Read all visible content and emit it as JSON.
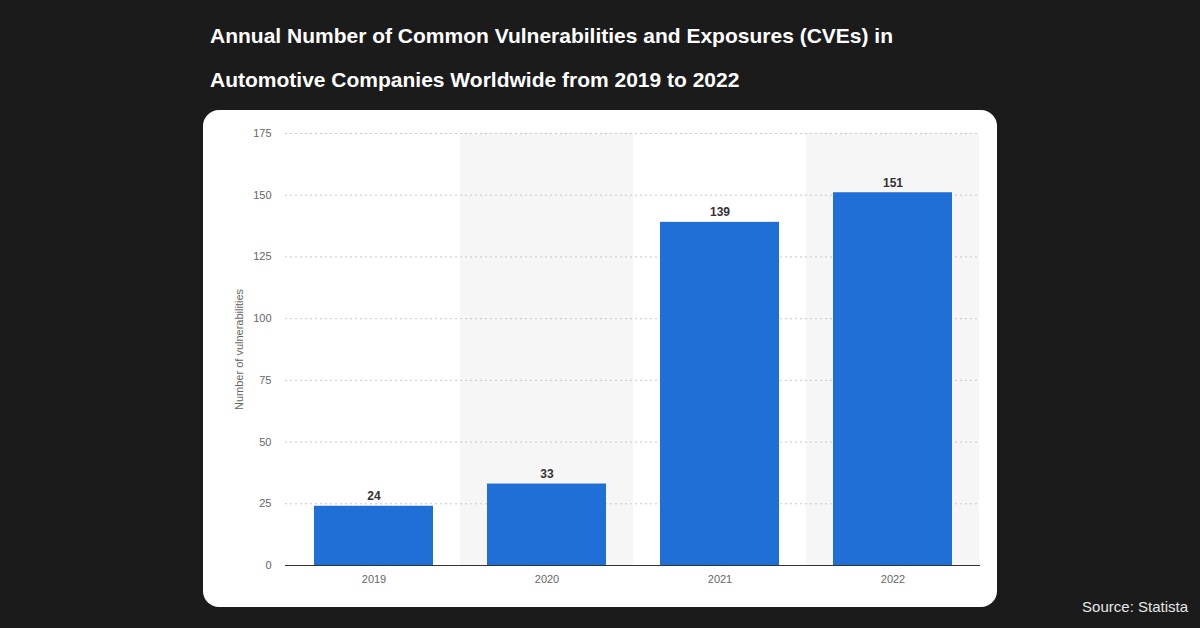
{
  "chart_data": {
    "type": "bar",
    "title": "Annual Number of Common Vulnerabilities and Exposures (CVEs) in Automotive Companies Worldwide from 2019 to 2022",
    "source": "Source: Statista",
    "y_label": "Number of vulnerabilities",
    "categories": [
      "2019",
      "2020",
      "2021",
      "2022"
    ],
    "values": [
      24,
      33,
      139,
      151
    ],
    "color": "#1f6fd6",
    "ylim": [
      0,
      175
    ],
    "yticks": [
      0,
      25,
      50,
      75,
      100,
      125,
      150,
      175
    ],
    "grid": true,
    "data_labels": true
  }
}
